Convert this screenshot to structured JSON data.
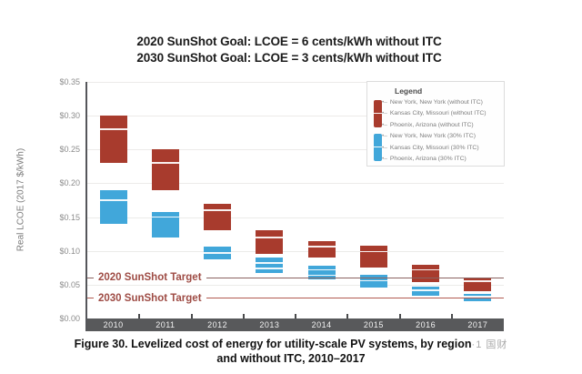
{
  "title": {
    "line1": "2020 SunShot Goal: LCOE = 6 cents/kWh without ITC",
    "line2": "2030 SunShot Goal: LCOE = 3 cents/kWh without ITC"
  },
  "y_axis": {
    "label": "Real LCOE (2017 $/kWh)",
    "ticks": [
      {
        "label": "$0.35",
        "value": 0.35
      },
      {
        "label": "$0.30",
        "value": 0.3
      },
      {
        "label": "$0.25",
        "value": 0.25
      },
      {
        "label": "$0.20",
        "value": 0.2
      },
      {
        "label": "$0.15",
        "value": 0.15
      },
      {
        "label": "$0.10",
        "value": 0.1
      },
      {
        "label": "$0.05",
        "value": 0.05
      },
      {
        "label": "$0.00",
        "value": 0.0
      }
    ]
  },
  "legend": {
    "title": "Legend",
    "items": [
      {
        "label": "New York, New York (without ITC)",
        "group": "without-itc"
      },
      {
        "label": "Kansas City, Missouri (without ITC)",
        "group": "without-itc"
      },
      {
        "label": "Phoenix, Arizona (without ITC)",
        "group": "without-itc"
      },
      {
        "label": "New York, New York (30% ITC)",
        "group": "itc-30"
      },
      {
        "label": "Kansas City, Missouri (30% ITC)",
        "group": "itc-30"
      },
      {
        "label": "Phoenix, Arizona (30% ITC)",
        "group": "itc-30"
      }
    ],
    "marker": "•–"
  },
  "caption": {
    "line1": "Figure 30. Levelized cost of energy for utility-scale PV systems, by region",
    "watermark": "·1 国财",
    "line2": "and without ITC, 2010–2017"
  },
  "colors": {
    "bar_without_itc": "#a83b2d",
    "bar_itc_30": "#41a7da",
    "axis_band": "#58595b",
    "year_text": "#f2f2f2",
    "grid": "#ecebe9",
    "axis_line": "#55565a",
    "target_2020_line": "#8a6260",
    "target_2030_line": "#b25a51",
    "target_text": "#9e4b44"
  },
  "chart_data": {
    "type": "bar",
    "subtype": "floating-range-bars",
    "title": "2020 SunShot Goal: LCOE = 6 cents/kWh without ITC / 2030 SunShot Goal: LCOE = 3 cents/kWh without ITC",
    "xlabel": "",
    "ylabel": "Real LCOE (2017 $/kWh)",
    "ylim": [
      0,
      0.35
    ],
    "grid": true,
    "legend_position": "top-right",
    "categories": [
      "2010",
      "2011",
      "2012",
      "2013",
      "2014",
      "2015",
      "2016",
      "2017"
    ],
    "note": "Each bar spans the LCOE range across the three regions (top ≈ New York NY, bottom ≈ Phoenix AZ); interior white line(s) mark Kansas City MO. Values in 2017 $/kWh, estimated from the plot.",
    "series": [
      {
        "name": "Without ITC",
        "color": "#a83b2d",
        "low": [
          0.23,
          0.19,
          0.13,
          0.095,
          0.09,
          0.076,
          0.054,
          0.04
        ],
        "high": [
          0.3,
          0.25,
          0.17,
          0.13,
          0.115,
          0.108,
          0.08,
          0.061
        ],
        "marker_lines": [
          [
            0.28
          ],
          [
            0.23
          ],
          [
            0.16
          ],
          [
            0.12
          ],
          [
            0.106
          ],
          [
            0.099
          ],
          [
            0.072
          ],
          [
            0.055
          ]
        ]
      },
      {
        "name": "30% ITC",
        "color": "#41a7da",
        "low": [
          0.14,
          0.12,
          0.087,
          0.067,
          0.058,
          0.046,
          0.034,
          0.025
        ],
        "high": [
          0.19,
          0.158,
          0.107,
          0.09,
          0.078,
          0.064,
          0.047,
          0.036
        ],
        "marker_lines": [
          [
            0.175
          ],
          [
            0.15
          ],
          [
            0.097
          ],
          [
            0.082,
            0.074
          ],
          [
            0.072,
            0.064
          ],
          [
            0.056
          ],
          [
            0.042
          ],
          [
            0.032
          ]
        ]
      }
    ],
    "targets": [
      {
        "label": "2020 SunShot Target",
        "value": 0.06
      },
      {
        "label": "2030 SunShot Target",
        "value": 0.03
      }
    ]
  }
}
